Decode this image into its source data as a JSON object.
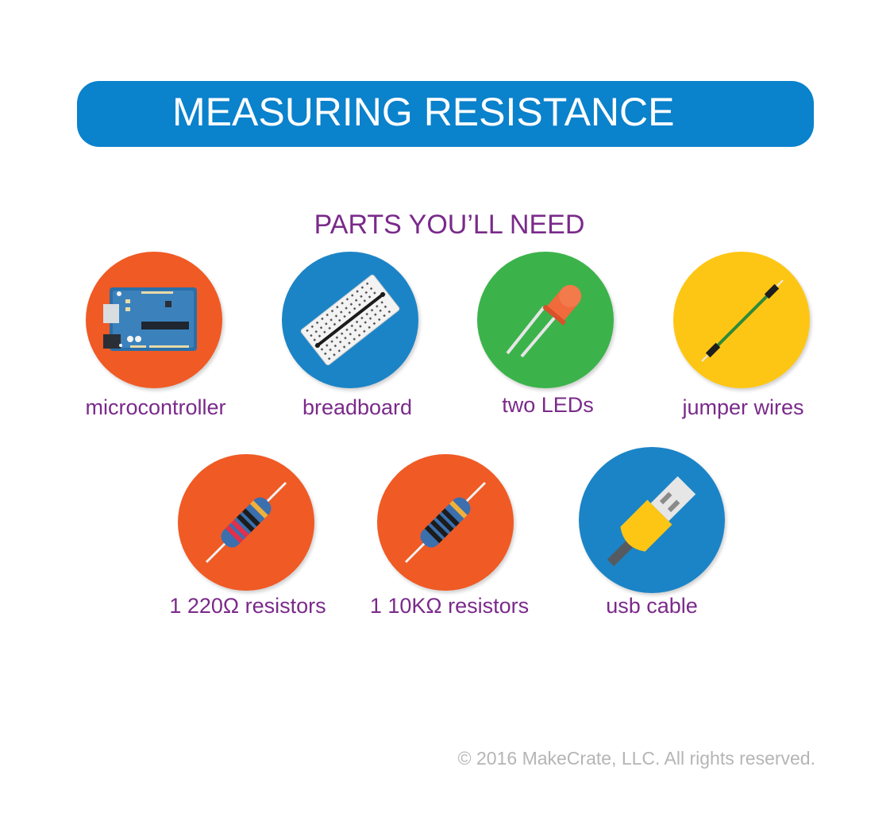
{
  "header": {
    "title": "MEASURING RESISTANCE"
  },
  "parts_section": {
    "heading": "PARTS YOU’LL NEED",
    "items": [
      {
        "label": "microcontroller",
        "icon": "microcontroller-icon",
        "color": "#f05a24"
      },
      {
        "label": "breadboard",
        "icon": "breadboard-icon",
        "color": "#1b84c6"
      },
      {
        "label": "two LEDs",
        "icon": "led-icon",
        "color": "#3bb34a"
      },
      {
        "label": "jumper wires",
        "icon": "jumper-wire-icon",
        "color": "#fec614"
      },
      {
        "label": "1 220Ω resistors",
        "icon": "resistor-220-icon",
        "color": "#f05a24"
      },
      {
        "label": "1 10KΩ resistors",
        "icon": "resistor-10k-icon",
        "color": "#f05a24"
      },
      {
        "label": "usb cable",
        "icon": "usb-cable-icon",
        "color": "#1b84c6"
      }
    ]
  },
  "footer": {
    "copyright": "© 2016 MakeCrate, LLC.  All rights reserved."
  },
  "colors": {
    "banner": "#0a82cc",
    "accent_text": "#7a2a8a",
    "footer_text": "#b5b5b5"
  }
}
